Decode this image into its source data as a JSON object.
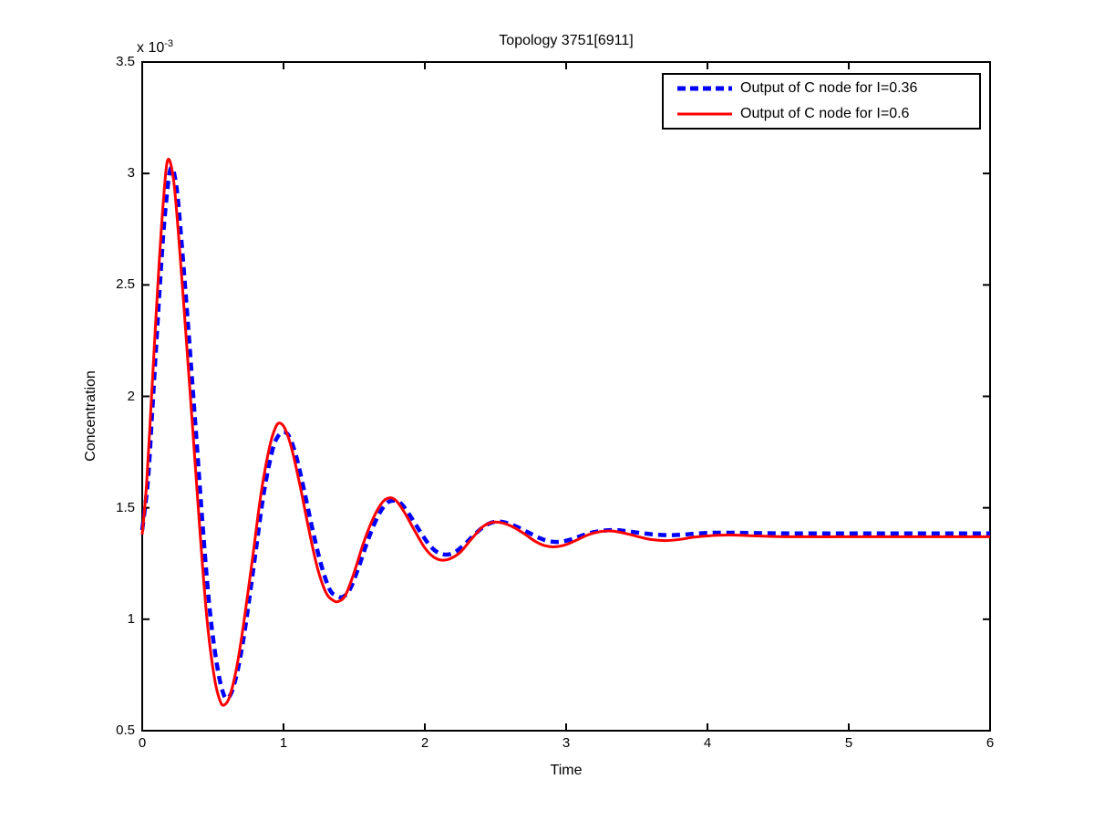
{
  "figure": {
    "title": "Topology 3751[6911]"
  },
  "axes": {
    "x_label": "Time",
    "y_label": "Concentration",
    "y_exponent_prefix": "x 10",
    "y_exponent": "-3",
    "x_tick_labels": [
      "0",
      "1",
      "2",
      "3",
      "4",
      "5",
      "6"
    ],
    "y_tick_labels": [
      "0.5",
      "1",
      "1.5",
      "2",
      "2.5",
      "3",
      "3.5"
    ]
  },
  "legend": {
    "entries": [
      {
        "label": "Output of C node for I=0.36",
        "color": "#0000ff",
        "line_style": "dashed"
      },
      {
        "label": "Output of C node for I=0.6",
        "color": "#ff0000",
        "line_style": "solid"
      }
    ]
  },
  "chart_data": {
    "type": "line",
    "title": "Topology 3751[6911]",
    "xlabel": "Time",
    "ylabel": "Concentration",
    "xlim": [
      0,
      6
    ],
    "ylim": [
      0.5,
      3.5
    ],
    "y_scale": "1e-3",
    "grid": false,
    "legend_position": "top-right",
    "x_ticks": [
      0,
      1,
      2,
      3,
      4,
      5,
      6
    ],
    "y_ticks": [
      0.5,
      1,
      1.5,
      2,
      2.5,
      3,
      3.5
    ],
    "series": [
      {
        "name": "Output of C node for I=0.36",
        "color": "#0000ff",
        "line_style": "dashed",
        "line_width": 4.5,
        "points": [
          [
            0,
            1.4
          ],
          [
            0.04,
            1.62
          ],
          [
            0.07,
            1.92
          ],
          [
            0.1,
            2.24
          ],
          [
            0.13,
            2.55
          ],
          [
            0.16,
            2.81
          ],
          [
            0.2,
            3.02
          ],
          [
            0.24,
            2.95
          ],
          [
            0.28,
            2.68
          ],
          [
            0.33,
            2.27
          ],
          [
            0.38,
            1.84
          ],
          [
            0.43,
            1.4
          ],
          [
            0.48,
            1.03
          ],
          [
            0.53,
            0.79
          ],
          [
            0.57,
            0.675
          ],
          [
            0.6,
            0.645
          ],
          [
            0.64,
            0.685
          ],
          [
            0.69,
            0.815
          ],
          [
            0.74,
            1.01
          ],
          [
            0.8,
            1.29
          ],
          [
            0.86,
            1.565
          ],
          [
            0.92,
            1.755
          ],
          [
            0.96,
            1.82
          ],
          [
            1.0,
            1.84
          ],
          [
            1.04,
            1.82
          ],
          [
            1.09,
            1.73
          ],
          [
            1.15,
            1.565
          ],
          [
            1.21,
            1.39
          ],
          [
            1.27,
            1.235
          ],
          [
            1.33,
            1.13
          ],
          [
            1.38,
            1.105
          ],
          [
            1.42,
            1.1
          ],
          [
            1.47,
            1.135
          ],
          [
            1.53,
            1.23
          ],
          [
            1.6,
            1.36
          ],
          [
            1.67,
            1.465
          ],
          [
            1.73,
            1.52
          ],
          [
            1.78,
            1.532
          ],
          [
            1.83,
            1.52
          ],
          [
            1.89,
            1.47
          ],
          [
            1.96,
            1.4
          ],
          [
            2.03,
            1.335
          ],
          [
            2.09,
            1.3
          ],
          [
            2.15,
            1.29
          ],
          [
            2.21,
            1.3
          ],
          [
            2.28,
            1.335
          ],
          [
            2.36,
            1.385
          ],
          [
            2.44,
            1.425
          ],
          [
            2.51,
            1.438
          ],
          [
            2.58,
            1.432
          ],
          [
            2.65,
            1.415
          ],
          [
            2.73,
            1.39
          ],
          [
            2.81,
            1.365
          ],
          [
            2.88,
            1.35
          ],
          [
            2.95,
            1.347
          ],
          [
            3.03,
            1.357
          ],
          [
            3.11,
            1.375
          ],
          [
            3.19,
            1.39
          ],
          [
            3.27,
            1.398
          ],
          [
            3.35,
            1.4
          ],
          [
            3.43,
            1.395
          ],
          [
            3.53,
            1.387
          ],
          [
            3.63,
            1.38
          ],
          [
            3.73,
            1.377
          ],
          [
            3.83,
            1.38
          ],
          [
            3.93,
            1.385
          ],
          [
            4.05,
            1.388
          ],
          [
            4.2,
            1.388
          ],
          [
            4.4,
            1.386
          ],
          [
            4.6,
            1.385
          ],
          [
            4.85,
            1.385
          ],
          [
            5.1,
            1.385
          ],
          [
            5.35,
            1.385
          ],
          [
            5.6,
            1.385
          ],
          [
            5.85,
            1.385
          ],
          [
            6.0,
            1.385
          ]
        ]
      },
      {
        "name": "Output of C node for I=0.6",
        "color": "#ff0000",
        "line_style": "solid",
        "line_width": 3,
        "points": [
          [
            0,
            1.38
          ],
          [
            0.03,
            1.6
          ],
          [
            0.06,
            1.93
          ],
          [
            0.09,
            2.27
          ],
          [
            0.12,
            2.6
          ],
          [
            0.15,
            2.88
          ],
          [
            0.18,
            3.06
          ],
          [
            0.22,
            2.98
          ],
          [
            0.26,
            2.7
          ],
          [
            0.31,
            2.27
          ],
          [
            0.36,
            1.83
          ],
          [
            0.41,
            1.38
          ],
          [
            0.46,
            0.99
          ],
          [
            0.51,
            0.74
          ],
          [
            0.55,
            0.635
          ],
          [
            0.58,
            0.615
          ],
          [
            0.62,
            0.655
          ],
          [
            0.67,
            0.79
          ],
          [
            0.72,
            0.99
          ],
          [
            0.78,
            1.27
          ],
          [
            0.84,
            1.56
          ],
          [
            0.9,
            1.77
          ],
          [
            0.94,
            1.855
          ],
          [
            0.97,
            1.88
          ],
          [
            1.01,
            1.855
          ],
          [
            1.06,
            1.76
          ],
          [
            1.12,
            1.59
          ],
          [
            1.18,
            1.4
          ],
          [
            1.24,
            1.23
          ],
          [
            1.3,
            1.12
          ],
          [
            1.35,
            1.085
          ],
          [
            1.39,
            1.08
          ],
          [
            1.44,
            1.11
          ],
          [
            1.5,
            1.21
          ],
          [
            1.57,
            1.35
          ],
          [
            1.64,
            1.46
          ],
          [
            1.7,
            1.525
          ],
          [
            1.75,
            1.545
          ],
          [
            1.8,
            1.53
          ],
          [
            1.86,
            1.475
          ],
          [
            1.93,
            1.395
          ],
          [
            2.0,
            1.32
          ],
          [
            2.06,
            1.28
          ],
          [
            2.12,
            1.265
          ],
          [
            2.18,
            1.272
          ],
          [
            2.25,
            1.3
          ],
          [
            2.33,
            1.36
          ],
          [
            2.41,
            1.415
          ],
          [
            2.48,
            1.435
          ],
          [
            2.55,
            1.432
          ],
          [
            2.62,
            1.415
          ],
          [
            2.7,
            1.385
          ],
          [
            2.78,
            1.35
          ],
          [
            2.85,
            1.33
          ],
          [
            2.92,
            1.325
          ],
          [
            3.0,
            1.335
          ],
          [
            3.08,
            1.357
          ],
          [
            3.16,
            1.38
          ],
          [
            3.24,
            1.393
          ],
          [
            3.32,
            1.396
          ],
          [
            3.4,
            1.388
          ],
          [
            3.5,
            1.372
          ],
          [
            3.6,
            1.358
          ],
          [
            3.7,
            1.353
          ],
          [
            3.8,
            1.358
          ],
          [
            3.9,
            1.368
          ],
          [
            4.0,
            1.374
          ],
          [
            4.15,
            1.378
          ],
          [
            4.3,
            1.375
          ],
          [
            4.5,
            1.371
          ],
          [
            4.75,
            1.37
          ],
          [
            5.0,
            1.37
          ],
          [
            5.25,
            1.37
          ],
          [
            5.5,
            1.37
          ],
          [
            5.75,
            1.37
          ],
          [
            6.0,
            1.37
          ]
        ]
      }
    ]
  }
}
